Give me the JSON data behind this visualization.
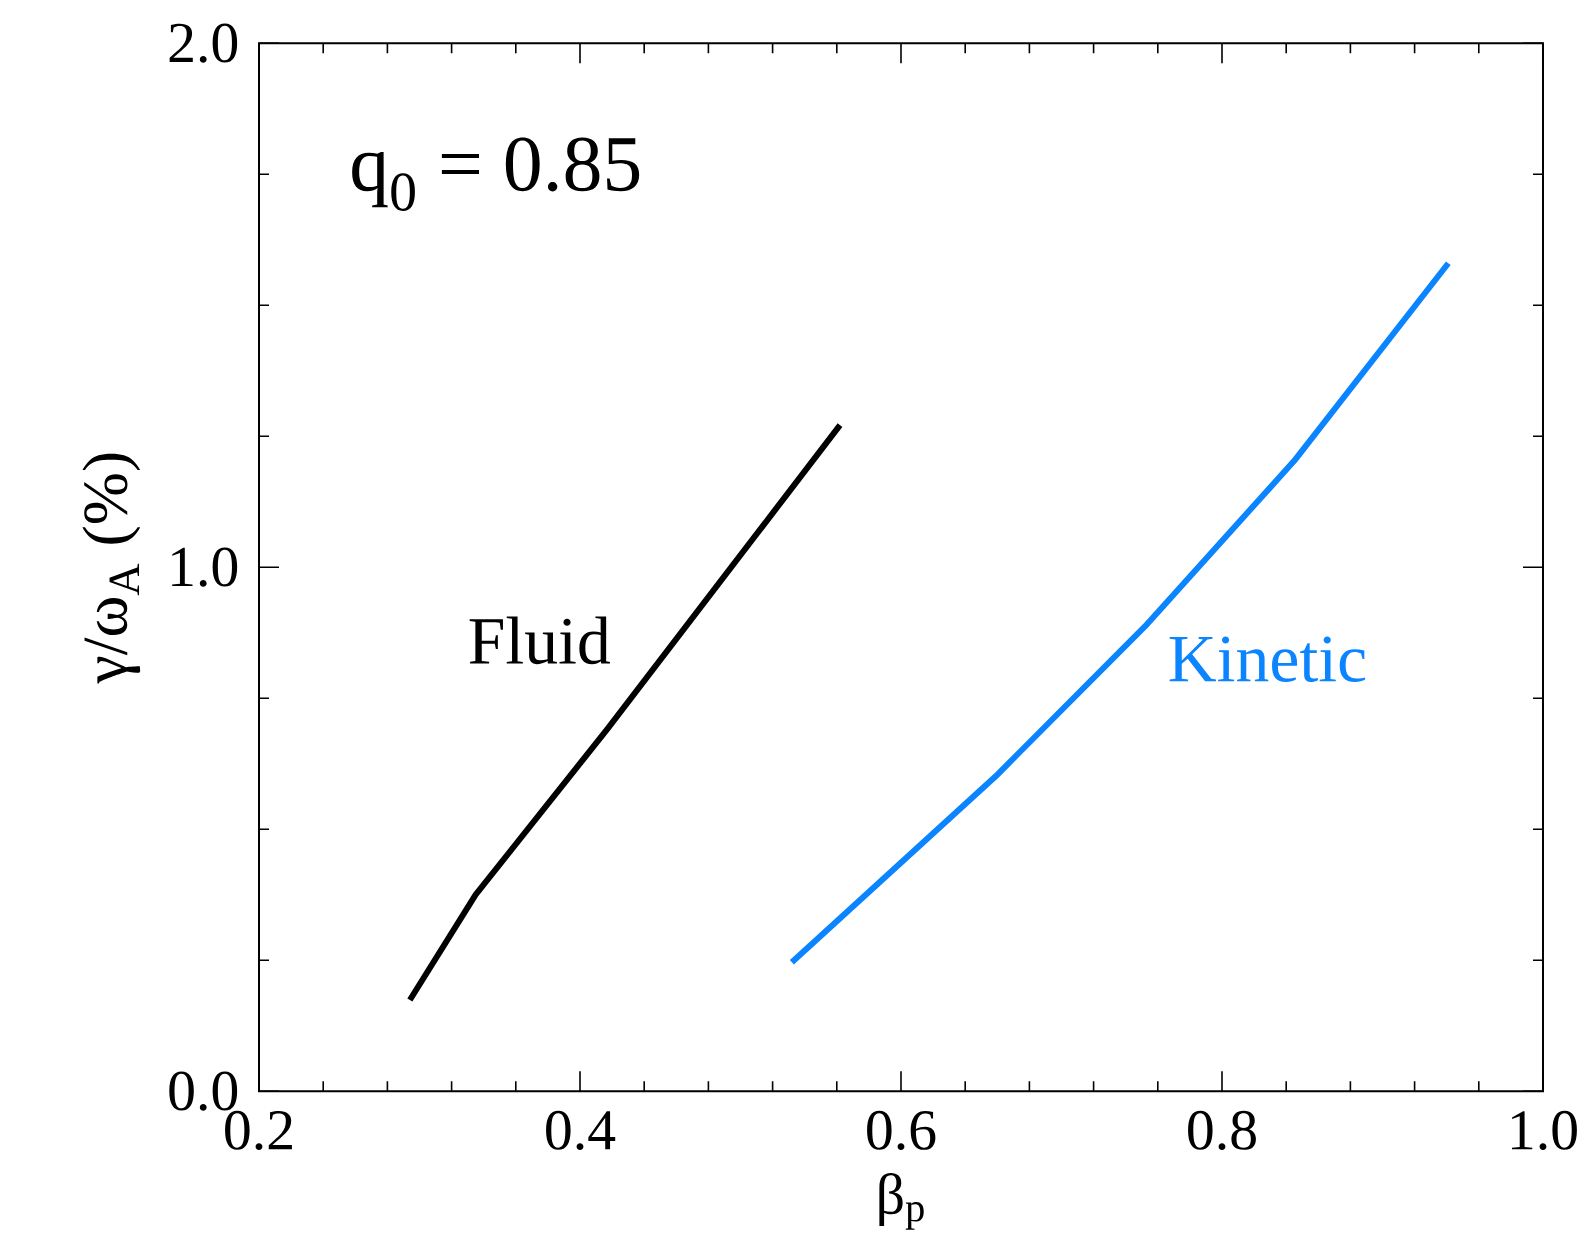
{
  "chart_data": {
    "type": "line",
    "xlabel": "β$_{p}$",
    "ylabel": "γ/ω$_{A}$ (%)",
    "xlim": [
      0.2,
      1.0
    ],
    "ylim": [
      0.0,
      2.0
    ],
    "xticks": [
      0.2,
      0.4,
      0.6,
      0.8,
      {
        "value": 1.0,
        "label": "1.0"
      }
    ],
    "yticks": [
      {
        "value": 0.0,
        "label": "0.0"
      },
      {
        "value": 1.0,
        "label": "1.0"
      },
      {
        "value": 2.0,
        "label": "2.0"
      }
    ],
    "annotations": [
      "q$_{0}$ = 0.85"
    ],
    "series": [
      {
        "name": "Fluid",
        "color": "#000000",
        "x": [
          0.294,
          0.335,
          0.417,
          0.562
        ],
        "values": [
          0.174,
          0.375,
          0.691,
          1.271
        ]
      },
      {
        "name": "Kinetic",
        "color": "#0a84ff",
        "x": [
          0.532,
          0.659,
          0.752,
          0.845,
          0.941
        ],
        "values": [
          0.246,
          0.601,
          0.887,
          1.203,
          1.58
        ]
      }
    ]
  }
}
